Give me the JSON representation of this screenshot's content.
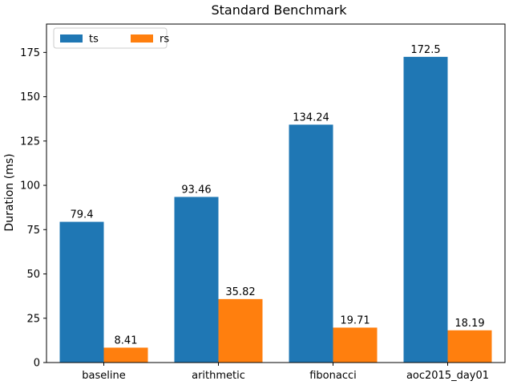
{
  "chart_data": {
    "type": "bar",
    "title": "Standard Benchmark",
    "xlabel": "",
    "ylabel": "Duration (ms)",
    "categories": [
      "baseline",
      "arithmetic",
      "fibonacci",
      "aoc2015_day01"
    ],
    "series": [
      {
        "name": "ts",
        "color": "#1f77b4",
        "values": [
          79.4,
          93.46,
          134.24,
          172.5
        ],
        "labels": [
          "79.4",
          "93.46",
          "134.24",
          "172.5"
        ]
      },
      {
        "name": "rs",
        "color": "#ff7f0e",
        "values": [
          8.41,
          35.82,
          19.71,
          18.19
        ],
        "labels": [
          "8.41",
          "35.82",
          "19.71",
          "18.19"
        ]
      }
    ],
    "ylim": [
      0,
      191
    ],
    "yticks": [
      0,
      25,
      50,
      75,
      100,
      125,
      150,
      175
    ],
    "grid": false,
    "legend_position": "top-left"
  }
}
